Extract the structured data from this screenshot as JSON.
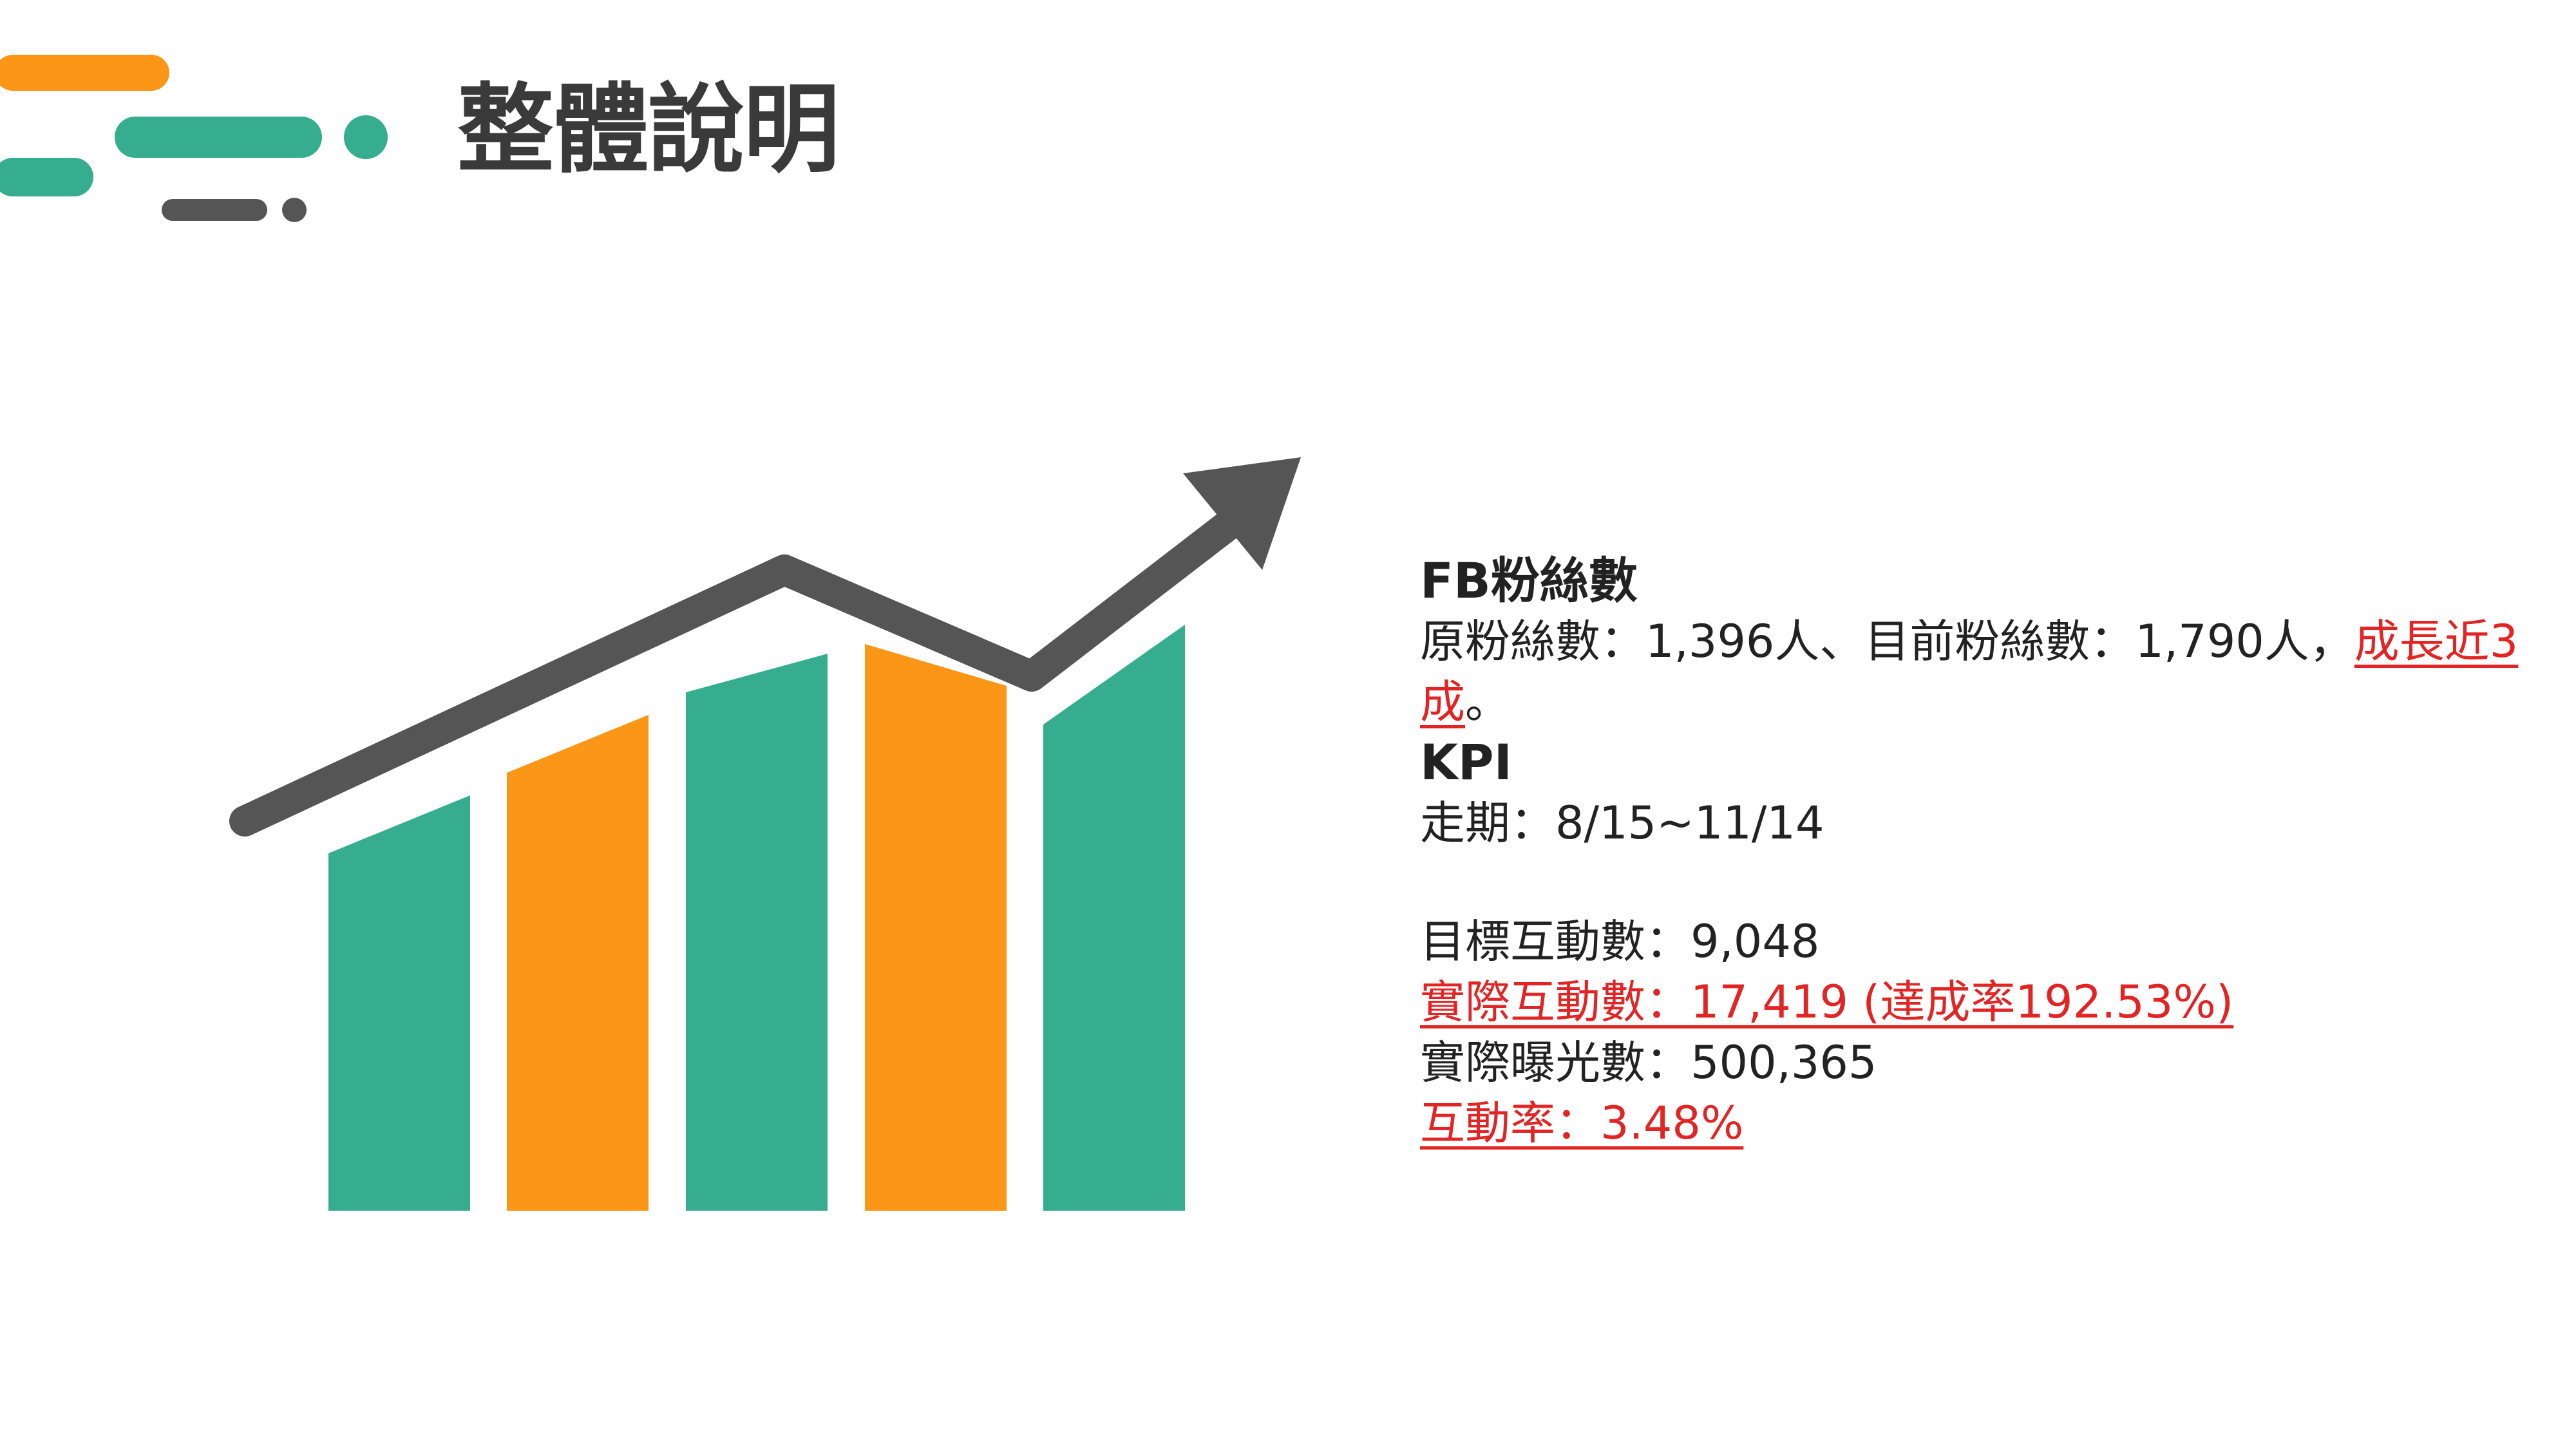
{
  "header": {
    "title": "整體說明"
  },
  "colors": {
    "teal": "#37ad8f",
    "orange": "#fb9616",
    "dark_gray": "#555555",
    "highlight_red": "#e32424"
  },
  "graphic": {
    "icon": "growth-bar-chart-with-arrow",
    "bar_colors": [
      "teal",
      "orange",
      "teal",
      "orange",
      "teal"
    ]
  },
  "fb_section": {
    "heading": "FB粉絲數",
    "line_prefix": "原粉絲數：1,396人、目前粉絲數：1,790人，",
    "line_highlight": "成長近3成",
    "line_suffix": "。"
  },
  "kpi_section": {
    "heading": "KPI",
    "period": "走期：8/15~11/14",
    "target_engagements": "目標互動數：9,048",
    "actual_engagements": "實際互動數：17,419 (達成率192.53%)",
    "actual_impressions": "實際曝光數：500,365",
    "engagement_rate": "互動率：3.48%"
  }
}
